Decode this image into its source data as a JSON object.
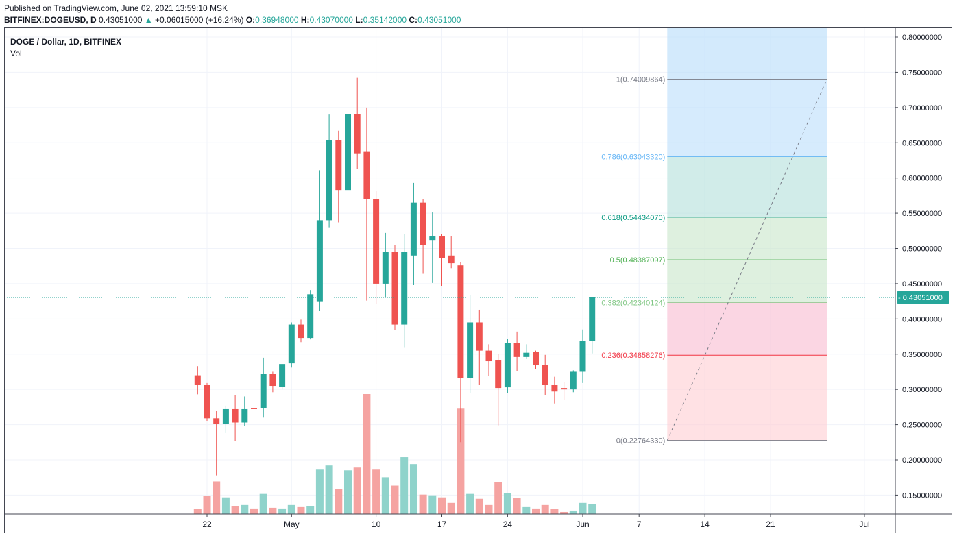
{
  "header": {
    "published": "Published on TradingView.com, June 02, 2021 13:59:10 MSK",
    "symbol": "BITFINEX:DOGEUSD, D",
    "last": "0.43051000",
    "change_arrow": "▲",
    "change": "+0.06015000 (+16.24%)",
    "o_label": "O:",
    "o": "0.36948000",
    "h_label": "H:",
    "h": "0.43070000",
    "l_label": "L:",
    "l": "0.35142000",
    "c_label": "C:",
    "c": "0.43051000"
  },
  "legend": {
    "title": "DOGE / Dollar, 1D, BITFINEX",
    "vol_label": "Vol"
  },
  "colors": {
    "up": "#26a69a",
    "down": "#ef5350",
    "up_vol": "#8fd3cb",
    "down_vol": "#f5a3a1",
    "grid": "#f0f3fa",
    "axis": "#434651"
  },
  "chart_data": {
    "type": "candlestick",
    "y_axis": {
      "ticks": [
        "0.80000000",
        "0.75000000",
        "0.70000000",
        "0.65000000",
        "0.60000000",
        "0.55000000",
        "0.50000000",
        "0.45000000",
        "0.40000000",
        "0.35000000",
        "0.30000000",
        "0.25000000",
        "0.20000000",
        "0.15000000"
      ],
      "range": [
        0.125,
        0.81
      ],
      "last_price_label": "0.43051000",
      "last_price": 0.43051
    },
    "x_axis": {
      "ticks": [
        {
          "label": "22",
          "date": "2021-04-22"
        },
        {
          "label": "May",
          "date": "2021-05-01"
        },
        {
          "label": "10",
          "date": "2021-05-10"
        },
        {
          "label": "17",
          "date": "2021-05-17"
        },
        {
          "label": "24",
          "date": "2021-05-24"
        },
        {
          "label": "Jun",
          "date": "2021-06-01"
        },
        {
          "label": "7",
          "date": "2021-06-07"
        },
        {
          "label": "14",
          "date": "2021-06-14"
        },
        {
          "label": "21",
          "date": "2021-06-21"
        },
        {
          "label": "Jul",
          "date": "2021-07-01"
        }
      ]
    },
    "candles": [
      {
        "date": "2021-04-21",
        "o": 0.32,
        "h": 0.333,
        "l": 0.293,
        "c": 0.306,
        "v": 7
      },
      {
        "date": "2021-04-22",
        "o": 0.306,
        "h": 0.309,
        "l": 0.255,
        "c": 0.259,
        "v": 26
      },
      {
        "date": "2021-04-23",
        "o": 0.259,
        "h": 0.27,
        "l": 0.178,
        "c": 0.251,
        "v": 47
      },
      {
        "date": "2021-04-24",
        "o": 0.251,
        "h": 0.277,
        "l": 0.238,
        "c": 0.272,
        "v": 24
      },
      {
        "date": "2021-04-25",
        "o": 0.272,
        "h": 0.292,
        "l": 0.227,
        "c": 0.253,
        "v": 11
      },
      {
        "date": "2021-04-26",
        "o": 0.253,
        "h": 0.29,
        "l": 0.248,
        "c": 0.272,
        "v": 13
      },
      {
        "date": "2021-04-27",
        "o": 0.273,
        "h": 0.276,
        "l": 0.269,
        "c": 0.272,
        "v": 8
      },
      {
        "date": "2021-04-28",
        "o": 0.273,
        "h": 0.345,
        "l": 0.26,
        "c": 0.322,
        "v": 29
      },
      {
        "date": "2021-04-29",
        "o": 0.322,
        "h": 0.325,
        "l": 0.296,
        "c": 0.305,
        "v": 9
      },
      {
        "date": "2021-04-30",
        "o": 0.304,
        "h": 0.336,
        "l": 0.3,
        "c": 0.336,
        "v": 8
      },
      {
        "date": "2021-05-01",
        "o": 0.337,
        "h": 0.395,
        "l": 0.331,
        "c": 0.392,
        "v": 13
      },
      {
        "date": "2021-05-02",
        "o": 0.392,
        "h": 0.399,
        "l": 0.367,
        "c": 0.373,
        "v": 10
      },
      {
        "date": "2021-05-03",
        "o": 0.373,
        "h": 0.441,
        "l": 0.371,
        "c": 0.435,
        "v": 11
      },
      {
        "date": "2021-05-04",
        "o": 0.425,
        "h": 0.611,
        "l": 0.411,
        "c": 0.54,
        "v": 64
      },
      {
        "date": "2021-05-05",
        "o": 0.54,
        "h": 0.69,
        "l": 0.53,
        "c": 0.654,
        "v": 70
      },
      {
        "date": "2021-05-06",
        "o": 0.654,
        "h": 0.667,
        "l": 0.537,
        "c": 0.583,
        "v": 36
      },
      {
        "date": "2021-05-07",
        "o": 0.583,
        "h": 0.736,
        "l": 0.517,
        "c": 0.691,
        "v": 63
      },
      {
        "date": "2021-05-08",
        "o": 0.691,
        "h": 0.742,
        "l": 0.613,
        "c": 0.635,
        "v": 67
      },
      {
        "date": "2021-05-09",
        "o": 0.637,
        "h": 0.7,
        "l": 0.426,
        "c": 0.57,
        "v": 173
      },
      {
        "date": "2021-05-10",
        "o": 0.57,
        "h": 0.582,
        "l": 0.421,
        "c": 0.45,
        "v": 64
      },
      {
        "date": "2021-05-11",
        "o": 0.45,
        "h": 0.522,
        "l": 0.431,
        "c": 0.495,
        "v": 53
      },
      {
        "date": "2021-05-12",
        "o": 0.495,
        "h": 0.505,
        "l": 0.384,
        "c": 0.392,
        "v": 41
      },
      {
        "date": "2021-05-13",
        "o": 0.392,
        "h": 0.52,
        "l": 0.359,
        "c": 0.495,
        "v": 82
      },
      {
        "date": "2021-05-14",
        "o": 0.49,
        "h": 0.593,
        "l": 0.448,
        "c": 0.565,
        "v": 72
      },
      {
        "date": "2021-05-15",
        "o": 0.565,
        "h": 0.57,
        "l": 0.464,
        "c": 0.505,
        "v": 28
      },
      {
        "date": "2021-05-16",
        "o": 0.512,
        "h": 0.551,
        "l": 0.451,
        "c": 0.517,
        "v": 27
      },
      {
        "date": "2021-05-17",
        "o": 0.517,
        "h": 0.52,
        "l": 0.446,
        "c": 0.486,
        "v": 24
      },
      {
        "date": "2021-05-18",
        "o": 0.49,
        "h": 0.517,
        "l": 0.472,
        "c": 0.479,
        "v": 16
      },
      {
        "date": "2021-05-19",
        "o": 0.476,
        "h": 0.481,
        "l": 0.225,
        "c": 0.316,
        "v": 152
      },
      {
        "date": "2021-05-20",
        "o": 0.316,
        "h": 0.434,
        "l": 0.295,
        "c": 0.395,
        "v": 29
      },
      {
        "date": "2021-05-21",
        "o": 0.395,
        "h": 0.413,
        "l": 0.306,
        "c": 0.355,
        "v": 22
      },
      {
        "date": "2021-05-22",
        "o": 0.355,
        "h": 0.364,
        "l": 0.319,
        "c": 0.34,
        "v": 13
      },
      {
        "date": "2021-05-23",
        "o": 0.341,
        "h": 0.35,
        "l": 0.249,
        "c": 0.302,
        "v": 46
      },
      {
        "date": "2021-05-24",
        "o": 0.303,
        "h": 0.372,
        "l": 0.295,
        "c": 0.366,
        "v": 30
      },
      {
        "date": "2021-05-25",
        "o": 0.366,
        "h": 0.382,
        "l": 0.326,
        "c": 0.346,
        "v": 23
      },
      {
        "date": "2021-05-26",
        "o": 0.346,
        "h": 0.364,
        "l": 0.343,
        "c": 0.352,
        "v": 10
      },
      {
        "date": "2021-05-27",
        "o": 0.353,
        "h": 0.355,
        "l": 0.329,
        "c": 0.335,
        "v": 8
      },
      {
        "date": "2021-05-28",
        "o": 0.335,
        "h": 0.349,
        "l": 0.292,
        "c": 0.306,
        "v": 13
      },
      {
        "date": "2021-05-29",
        "o": 0.306,
        "h": 0.318,
        "l": 0.28,
        "c": 0.297,
        "v": 7
      },
      {
        "date": "2021-05-30",
        "o": 0.302,
        "h": 0.31,
        "l": 0.285,
        "c": 0.3,
        "v": 3
      },
      {
        "date": "2021-05-31",
        "o": 0.3,
        "h": 0.327,
        "l": 0.296,
        "c": 0.325,
        "v": 5
      },
      {
        "date": "2021-06-01",
        "o": 0.325,
        "h": 0.385,
        "l": 0.309,
        "c": 0.369,
        "v": 16
      },
      {
        "date": "2021-06-02",
        "o": 0.369,
        "h": 0.431,
        "l": 0.351,
        "c": 0.431,
        "v": 14
      }
    ],
    "fibonacci": {
      "start_date": "2021-06-10",
      "end_date": "2021-06-27",
      "levels": [
        {
          "ratio": 1,
          "price": 0.74009864,
          "label": "1(0.74009864)",
          "color": "#787b86",
          "fill": "#d1d4dc"
        },
        {
          "ratio": 0.786,
          "price": 0.6304332,
          "label": "0.786(0.63043320)",
          "color": "#64b5f6",
          "fill": "#bbdefb"
        },
        {
          "ratio": 0.618,
          "price": 0.5443407,
          "label": "0.618(0.54434070)",
          "color": "#089981",
          "fill": "#b2dfdb"
        },
        {
          "ratio": 0.5,
          "price": 0.48387097,
          "label": "0.5(0.48387097)",
          "color": "#4caf50",
          "fill": "#c8e6c9"
        },
        {
          "ratio": 0.382,
          "price": 0.42340124,
          "label": "0.382(0.42340124)",
          "color": "#81c784",
          "fill": "#c8e6c9"
        },
        {
          "ratio": 0.236,
          "price": 0.34858276,
          "label": "0.236(0.34858276)",
          "color": "#f23645",
          "fill": "#f8bbd0"
        },
        {
          "ratio": 0,
          "price": 0.2276433,
          "label": "0(0.22764330)",
          "color": "#787b86",
          "fill": "#ffcdd2"
        }
      ],
      "extension_top_color": "#bbdefb"
    }
  }
}
